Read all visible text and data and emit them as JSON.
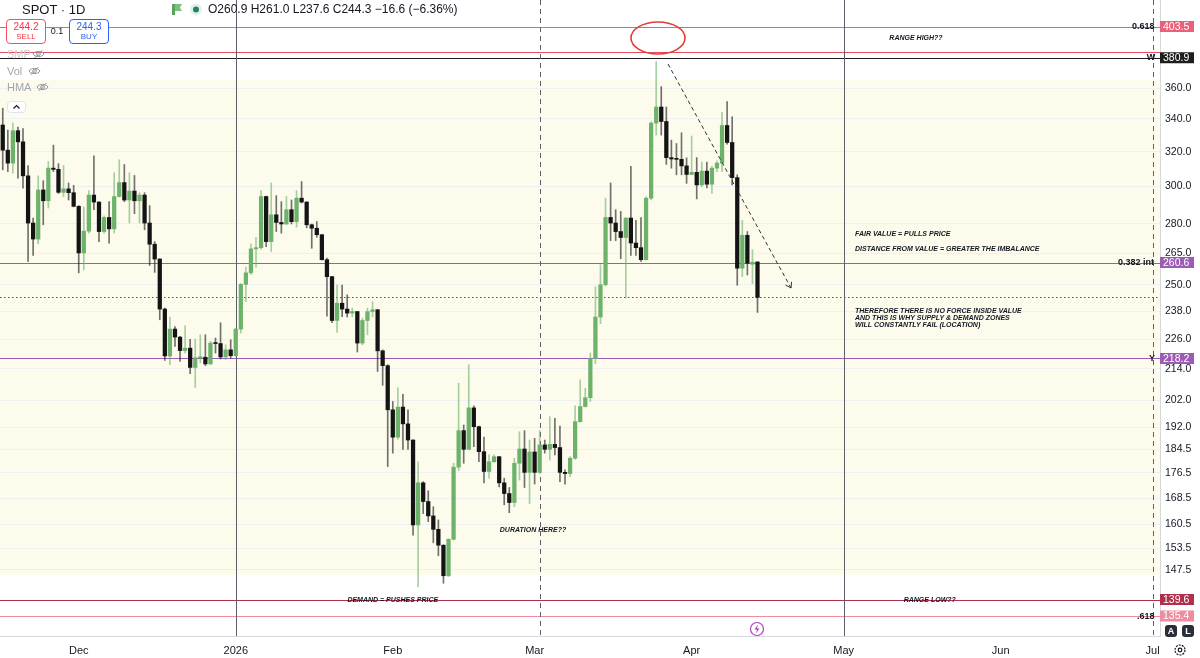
{
  "chart_data": {
    "type": "candlestick",
    "title": "SPOT · 1D",
    "subtitle": "O260.9 H261.0 L237.6 C244.3 −16.6 (−6.36%)",
    "x": [
      "2025-11-16",
      "2025-11-17",
      "2025-11-18",
      "2025-11-19",
      "2025-11-20",
      "2025-11-21",
      "2025-11-22",
      "2025-11-23",
      "2025-11-24",
      "2025-11-25",
      "2025-11-26",
      "2025-11-27",
      "2025-11-28",
      "2025-11-29",
      "2025-11-30",
      "2025-12-01",
      "2025-12-02",
      "2025-12-03",
      "2025-12-04",
      "2025-12-05",
      "2025-12-06",
      "2025-12-07",
      "2025-12-08",
      "2025-12-09",
      "2025-12-10",
      "2025-12-11",
      "2025-12-12",
      "2025-12-13",
      "2025-12-14",
      "2025-12-15",
      "2025-12-16",
      "2025-12-17",
      "2025-12-18",
      "2025-12-19",
      "2025-12-20",
      "2025-12-21",
      "2025-12-22",
      "2025-12-23",
      "2025-12-24",
      "2025-12-25",
      "2025-12-26",
      "2025-12-27",
      "2025-12-28",
      "2025-12-29",
      "2025-12-30",
      "2025-12-31",
      "2026-01-01",
      "2026-01-02",
      "2026-01-03",
      "2026-01-04",
      "2026-01-05",
      "2026-01-06",
      "2026-01-07",
      "2026-01-08",
      "2026-01-09",
      "2026-01-10",
      "2026-01-11",
      "2026-01-12",
      "2026-01-13",
      "2026-01-14",
      "2026-01-15",
      "2026-01-16",
      "2026-01-17",
      "2026-01-18",
      "2026-01-19",
      "2026-01-20",
      "2026-01-21",
      "2026-01-22",
      "2026-01-23",
      "2026-01-24",
      "2026-01-25",
      "2026-01-26",
      "2026-01-27",
      "2026-01-28",
      "2026-01-29",
      "2026-01-30",
      "2026-01-31",
      "2026-02-01",
      "2026-02-02",
      "2026-02-03",
      "2026-02-04",
      "2026-02-05",
      "2026-02-06",
      "2026-02-07",
      "2026-02-08",
      "2026-02-09",
      "2026-02-10",
      "2026-02-11",
      "2026-02-12",
      "2026-02-13",
      "2026-02-14",
      "2026-02-15",
      "2026-02-16",
      "2026-02-17",
      "2026-02-18",
      "2026-02-19",
      "2026-02-20",
      "2026-02-21",
      "2026-02-22",
      "2026-02-23",
      "2026-02-24",
      "2026-02-25",
      "2026-02-26",
      "2026-02-27",
      "2026-02-28",
      "2026-03-01",
      "2026-03-02",
      "2026-03-03",
      "2026-03-04",
      "2026-03-05",
      "2026-03-06",
      "2026-03-07",
      "2026-03-08",
      "2026-03-09",
      "2026-03-10",
      "2026-03-11",
      "2026-03-12",
      "2026-03-13",
      "2026-03-14",
      "2026-03-15",
      "2026-03-16",
      "2026-03-17",
      "2026-03-18",
      "2026-03-19",
      "2026-03-20",
      "2026-03-21",
      "2026-03-22",
      "2026-03-23",
      "2026-03-24",
      "2026-03-25",
      "2026-03-26",
      "2026-03-27",
      "2026-03-28",
      "2026-03-29",
      "2026-03-30",
      "2026-03-31",
      "2026-04-01",
      "2026-04-02",
      "2026-04-03",
      "2026-04-04",
      "2026-04-05",
      "2026-04-06",
      "2026-04-07",
      "2026-04-08",
      "2026-04-09",
      "2026-04-10",
      "2026-04-11",
      "2026-04-12",
      "2026-04-13",
      "2026-04-14"
    ],
    "ohlc": [
      [
        336.2,
        346.8,
        309.4,
        320.9
      ],
      [
        320.9,
        333.1,
        308.4,
        313.3
      ],
      [
        313.3,
        337.6,
        307.5,
        332.7
      ],
      [
        332.7,
        334.9,
        304.7,
        325.9
      ],
      [
        325.9,
        334.0,
        299.1,
        306.0
      ],
      [
        306.0,
        311.9,
        261.2,
        280.4
      ],
      [
        280.4,
        283.0,
        264.1,
        272.2
      ],
      [
        272.2,
        306.0,
        269.8,
        298.1
      ],
      [
        298.1,
        303.3,
        279.5,
        292.2
      ],
      [
        292.2,
        314.2,
        288.3,
        310.4
      ],
      [
        310.4,
        323.9,
        308.4,
        309.7
      ],
      [
        309.7,
        313.0,
        296.2,
        296.8
      ],
      [
        296.8,
        311.9,
        294.5,
        298.7
      ],
      [
        298.7,
        302.0,
        292.6,
        296.6
      ],
      [
        296.6,
        300.7,
        288.9,
        289.2
      ],
      [
        289.2,
        289.6,
        255.7,
        265.3
      ],
      [
        265.3,
        288.9,
        257.1,
        276.2
      ],
      [
        276.2,
        297.7,
        275.2,
        295.3
      ],
      [
        295.3,
        317.5,
        287.4,
        291.5
      ],
      [
        291.5,
        291.7,
        270.9,
        276.0
      ],
      [
        276.0,
        284.2,
        275.2,
        283.3
      ],
      [
        283.3,
        291.7,
        270.1,
        277.4
      ],
      [
        277.4,
        307.8,
        275.2,
        294.5
      ],
      [
        294.5,
        315.2,
        294.2,
        302.2
      ],
      [
        302.2,
        312.5,
        291.7,
        292.6
      ],
      [
        292.6,
        307.8,
        280.4,
        297.5
      ],
      [
        297.5,
        306.2,
        285.3,
        292.2
      ],
      [
        292.2,
        296.6,
        280.4,
        295.3
      ],
      [
        295.3,
        296.6,
        276.9,
        280.4
      ],
      [
        280.4,
        289.6,
        259.2,
        269.6
      ],
      [
        269.6,
        270.9,
        255.9,
        262.3
      ],
      [
        262.3,
        262.5,
        234.4,
        239.1
      ],
      [
        239.1,
        239.5,
        217.4,
        219.2
      ],
      [
        219.2,
        235.6,
        215.7,
        230.4
      ],
      [
        230.4,
        231.5,
        223.1,
        227.0
      ],
      [
        227.0,
        227.3,
        217.0,
        221.4
      ],
      [
        221.4,
        231.8,
        220.4,
        222.4
      ],
      [
        222.4,
        226.1,
        212.1,
        214.6
      ],
      [
        214.6,
        226.1,
        206.8,
        218.5
      ],
      [
        218.5,
        228.0,
        216.4,
        218.7
      ],
      [
        218.7,
        228.0,
        215.3,
        216.0
      ],
      [
        216.0,
        225.2,
        215.7,
        224.5
      ],
      [
        224.5,
        226.6,
        220.4,
        224.3
      ],
      [
        224.3,
        233.1,
        218.0,
        218.8
      ],
      [
        218.8,
        223.8,
        217.7,
        221.7
      ],
      [
        221.7,
        225.9,
        218.4,
        219.3
      ],
      [
        219.3,
        230.6,
        219.0,
        230.4
      ],
      [
        230.4,
        250.7,
        228.7,
        250.3
      ],
      [
        250.3,
        258.4,
        242.4,
        255.7
      ],
      [
        255.7,
        269.8,
        254.9,
        267.3
      ],
      [
        267.3,
        273.1,
        258.4,
        267.9
      ],
      [
        267.9,
        297.7,
        267.1,
        294.5
      ],
      [
        294.5,
        294.7,
        268.4,
        270.9
      ],
      [
        270.9,
        302.0,
        266.0,
        284.7
      ],
      [
        284.7,
        295.0,
        276.0,
        280.7
      ],
      [
        280.7,
        291.7,
        275.2,
        279.9
      ],
      [
        279.9,
        294.5,
        279.5,
        287.4
      ],
      [
        287.4,
        292.6,
        279.9,
        281.1
      ],
      [
        281.1,
        297.7,
        278.3,
        293.6
      ],
      [
        293.6,
        302.8,
        291.0,
        291.5
      ],
      [
        291.5,
        291.7,
        277.9,
        279.5
      ],
      [
        279.5,
        279.9,
        267.6,
        277.7
      ],
      [
        277.7,
        281.2,
        273.1,
        274.4
      ],
      [
        274.4,
        274.5,
        261.7,
        262.0
      ],
      [
        262.0,
        262.8,
        236.0,
        253.9
      ],
      [
        253.9,
        254.0,
        233.1,
        234.1
      ],
      [
        234.1,
        249.9,
        229.0,
        241.7
      ],
      [
        241.7,
        249.9,
        235.7,
        239.1
      ],
      [
        239.1,
        245.5,
        235.6,
        237.3
      ],
      [
        237.3,
        239.5,
        235.7,
        238.0
      ],
      [
        238.0,
        238.1,
        220.8,
        224.5
      ],
      [
        224.5,
        235.1,
        223.8,
        234.1
      ],
      [
        234.1,
        239.5,
        228.0,
        238.0
      ],
      [
        238.0,
        242.4,
        235.7,
        238.8
      ],
      [
        238.8,
        238.9,
        213.0,
        221.3
      ],
      [
        221.3,
        221.7,
        207.6,
        215.3
      ],
      [
        215.3,
        215.7,
        178.6,
        198.4
      ],
      [
        198.4,
        201.5,
        183.1,
        188.6
      ],
      [
        188.6,
        206.6,
        187.9,
        199.4
      ],
      [
        199.4,
        204.2,
        184.4,
        193.3
      ],
      [
        193.3,
        198.4,
        184.4,
        187.6
      ],
      [
        187.6,
        187.7,
        157.3,
        160.3
      ],
      [
        160.3,
        180.2,
        142.9,
        173.3
      ],
      [
        173.3,
        173.7,
        163.7,
        167.4
      ],
      [
        167.4,
        170.8,
        161.3,
        163.0
      ],
      [
        163.0,
        165.8,
        155.1,
        159.0
      ],
      [
        159.0,
        161.8,
        151.4,
        154.4
      ],
      [
        154.4,
        154.5,
        143.9,
        145.9
      ],
      [
        145.9,
        156.3,
        145.7,
        156.1
      ],
      [
        156.1,
        179.7,
        155.9,
        178.4
      ],
      [
        178.4,
        208.4,
        177.3,
        190.9
      ],
      [
        190.9,
        192.9,
        179.7,
        184.4
      ],
      [
        184.4,
        215.7,
        184.2,
        199.1
      ],
      [
        199.1,
        199.9,
        185.3,
        192.3
      ],
      [
        192.3,
        192.5,
        180.2,
        183.6
      ],
      [
        183.6,
        188.6,
        173.3,
        177.0
      ],
      [
        177.0,
        182.5,
        174.8,
        180.2
      ],
      [
        180.2,
        182.5,
        180.1,
        181.9
      ],
      [
        181.9,
        182.0,
        172.0,
        173.3
      ],
      [
        173.3,
        174.8,
        166.4,
        169.9
      ],
      [
        169.9,
        171.8,
        164.0,
        167.1
      ],
      [
        167.1,
        181.4,
        165.8,
        179.7
      ],
      [
        179.7,
        190.5,
        174.2,
        184.5
      ],
      [
        184.5,
        190.9,
        171.8,
        176.7
      ],
      [
        176.7,
        187.6,
        166.7,
        183.5
      ],
      [
        183.5,
        188.2,
        172.9,
        176.7
      ],
      [
        176.7,
        190.9,
        176.3,
        185.9
      ],
      [
        185.9,
        187.6,
        183.1,
        184.4
      ],
      [
        184.4,
        195.9,
        180.8,
        186.1
      ],
      [
        186.1,
        195.3,
        182.5,
        185.0
      ],
      [
        185.0,
        192.5,
        173.7,
        176.7
      ],
      [
        176.7,
        177.5,
        172.9,
        176.3
      ],
      [
        176.3,
        181.9,
        175.3,
        181.4
      ],
      [
        181.4,
        199.9,
        181.0,
        194.1
      ],
      [
        194.1,
        209.7,
        193.9,
        199.6
      ],
      [
        199.6,
        206.5,
        199.4,
        202.9
      ],
      [
        202.9,
        220.4,
        201.5,
        218.1
      ],
      [
        218.1,
        249.2,
        216.1,
        235.6
      ],
      [
        235.6,
        259.6,
        232.7,
        250.1
      ],
      [
        250.1,
        293.6,
        249.5,
        283.3
      ],
      [
        283.3,
        302.0,
        271.4,
        280.4
      ],
      [
        280.4,
        287.4,
        271.4,
        276.0
      ],
      [
        276.0,
        286.5,
        262.5,
        273.0
      ],
      [
        273.0,
        283.2,
        244.0,
        283.0
      ],
      [
        283.0,
        311.4,
        264.1,
        270.2
      ],
      [
        270.2,
        281.8,
        264.1,
        267.9
      ],
      [
        267.9,
        283.3,
        261.2,
        262.0
      ],
      [
        262.0,
        294.5,
        261.7,
        293.6
      ],
      [
        293.6,
        338.4,
        292.6,
        337.4
      ],
      [
        337.4,
        378.2,
        330.0,
        347.6
      ],
      [
        347.6,
        361.0,
        330.0,
        338.4
      ],
      [
        338.4,
        347.6,
        312.6,
        316.5
      ],
      [
        316.5,
        326.9,
        310.4,
        315.7
      ],
      [
        315.7,
        324.9,
        306.6,
        315.5
      ],
      [
        315.5,
        331.4,
        306.6,
        311.7
      ],
      [
        311.7,
        316.4,
        301.8,
        306.8
      ],
      [
        306.8,
        329.4,
        306.6,
        308.0
      ],
      [
        308.0,
        316.5,
        293.2,
        300.9
      ],
      [
        300.9,
        313.9,
        299.9,
        308.7
      ],
      [
        308.7,
        313.9,
        299.3,
        301.3
      ],
      [
        301.3,
        311.6,
        296.2,
        310.4
      ],
      [
        310.4,
        314.6,
        308.4,
        313.3
      ],
      [
        313.3,
        344.2,
        308.4,
        335.9
      ],
      [
        335.9,
        351.1,
        324.5,
        325.5
      ],
      [
        325.5,
        341.4,
        300.9,
        305.0
      ],
      [
        305.0,
        306.6,
        249.9,
        257.9
      ],
      [
        257.9,
        281.8,
        253.9,
        274.1
      ],
      [
        274.1,
        276.0,
        254.7,
        260.3
      ],
      [
        259.8,
        266.9,
        250.6,
        260.8
      ],
      [
        260.9,
        261.0,
        237.6,
        244.3
      ]
    ],
    "colors": [
      "#141414",
      "#141414",
      "#6db26a",
      "#141414",
      "#141414",
      "#141414",
      "#141414",
      "#6db26a",
      "#141414",
      "#6db26a",
      "#141414",
      "#141414",
      "#6db26a",
      "#141414",
      "#141414",
      "#141414",
      "#6db26a",
      "#6db26a",
      "#141414",
      "#141414",
      "#6db26a",
      "#141414",
      "#6db26a",
      "#6db26a",
      "#141414",
      "#6db26a",
      "#141414",
      "#6db26a",
      "#141414",
      "#141414",
      "#141414",
      "#141414",
      "#141414",
      "#6db26a",
      "#141414",
      "#141414",
      "#6db26a",
      "#141414",
      "#6db26a",
      "#6db26a",
      "#141414",
      "#6db26a",
      "#141414",
      "#141414",
      "#6db26a",
      "#141414",
      "#6db26a",
      "#6db26a",
      "#6db26a",
      "#6db26a",
      "#6db26a",
      "#6db26a",
      "#141414",
      "#6db26a",
      "#141414",
      "#141414",
      "#6db26a",
      "#141414",
      "#6db26a",
      "#141414",
      "#141414",
      "#141414",
      "#141414",
      "#141414",
      "#141414",
      "#141414",
      "#6db26a",
      "#141414",
      "#141414",
      "#6db26a",
      "#141414",
      "#6db26a",
      "#6db26a",
      "#6db26a",
      "#141414",
      "#141414",
      "#141414",
      "#141414",
      "#6db26a",
      "#141414",
      "#141414",
      "#141414",
      "#6db26a",
      "#141414",
      "#141414",
      "#141414",
      "#141414",
      "#141414",
      "#6db26a",
      "#6db26a",
      "#6db26a",
      "#141414",
      "#6db26a",
      "#141414",
      "#141414",
      "#141414",
      "#6db26a",
      "#6db26a",
      "#141414",
      "#141414",
      "#141414",
      "#6db26a",
      "#6db26a",
      "#141414",
      "#6db26a",
      "#141414",
      "#6db26a",
      "#141414",
      "#6db26a",
      "#141414",
      "#141414",
      "#141414",
      "#6db26a",
      "#6db26a",
      "#6db26a",
      "#6db26a",
      "#6db26a",
      "#6db26a",
      "#6db26a",
      "#6db26a",
      "#141414",
      "#141414",
      "#141414",
      "#6db26a",
      "#141414",
      "#141414",
      "#141414",
      "#6db26a",
      "#6db26a",
      "#6db26a",
      "#141414",
      "#141414",
      "#141414",
      "#141414",
      "#141414",
      "#141414",
      "#6db26a",
      "#141414",
      "#6db26a",
      "#141414",
      "#6db26a",
      "#6db26a",
      "#6db26a",
      "#141414",
      "#141414",
      "#141414",
      "#6db26a",
      "#141414",
      "#6db26a",
      "#141414"
    ],
    "xlim": [
      "2025-11-15T11:00",
      "2026-07-02T11:00"
    ],
    "xticks": [
      {
        "value": "2025-12-01",
        "label": "Dec"
      },
      {
        "value": "2026-01-01",
        "label": "2026"
      },
      {
        "value": "2026-02-01",
        "label": "Feb"
      },
      {
        "value": "2026-03-01",
        "label": "Mar"
      },
      {
        "value": "2026-04-01",
        "label": "Apr"
      },
      {
        "value": "2026-05-01",
        "label": "May"
      },
      {
        "value": "2026-06-01",
        "label": "Jun"
      },
      {
        "value": "2026-07-01",
        "label": "Jul"
      }
    ],
    "ylim": [
      130.5,
      423.8
    ],
    "yticks": [
      {
        "value": 360,
        "label": "360.0"
      },
      {
        "value": 340,
        "label": "340.0"
      },
      {
        "value": 320,
        "label": "320.0"
      },
      {
        "value": 300,
        "label": "300.0"
      },
      {
        "value": 280,
        "label": "280.0"
      },
      {
        "value": 265,
        "label": "265.0"
      },
      {
        "value": 250,
        "label": "250.0"
      },
      {
        "value": 238,
        "label": "238.0"
      },
      {
        "value": 226,
        "label": "226.0"
      },
      {
        "value": 214,
        "label": "214.0"
      },
      {
        "value": 202,
        "label": "202.0"
      },
      {
        "value": 192,
        "label": "192.0"
      },
      184.5,
      176.5,
      168.5,
      160.5,
      153.5,
      147.5
    ],
    "log": "y",
    "grid": "y",
    "bands": [
      {
        "axis": "y",
        "from": 146.1,
        "to": 365.4,
        "color": "#fcfbec"
      }
    ],
    "ref_lines": [
      {
        "axis": "y",
        "value": 403.5,
        "label": "403.5",
        "color": "#e8607a"
      },
      {
        "axis": "y",
        "value": 385,
        "color": "#e54d5f"
      },
      {
        "axis": "y",
        "value": 380.9,
        "label": "380.9",
        "color": "#1e1e1e"
      },
      {
        "axis": "y",
        "value": 260.6,
        "label": "260.6",
        "color": "#9c5bb5"
      },
      {
        "axis": "y",
        "value": 244.3,
        "color": "#555555",
        "line_style": "dotted"
      },
      {
        "axis": "y",
        "value": 218.2,
        "label": "218.2",
        "color": "#9c5bb5"
      },
      {
        "axis": "y",
        "value": 139.6,
        "label": "139.6",
        "color": "#b0304a"
      },
      {
        "axis": "y",
        "value": 135.4,
        "label": "135.4",
        "color": "#ee8ca0"
      },
      {
        "axis": "x",
        "value": "2026-01-01",
        "color": "#5d606b"
      },
      {
        "axis": "x",
        "value": "2026-03-02",
        "color": "#5d606b",
        "line_style": "dashed"
      },
      {
        "axis": "x",
        "value": "2026-05-01",
        "color": "#5d606b"
      },
      {
        "axis": "x",
        "value": "2026-07-01",
        "color": "#5d606b",
        "line_style": "dashed"
      }
    ],
    "annotations": [
      {
        "text": "0.618",
        "x": "2026-06-29T04:00",
        "y": 403.5
      },
      {
        "text": "W",
        "x": "2026-06-30T16:00",
        "y": 380.9
      },
      {
        "text": "0.382 int",
        "x": "2026-06-27T17:00",
        "y": 260.6
      },
      {
        "text": "Y",
        "x": "2026-06-30T21:00",
        "y": 218.2
      },
      {
        "text": ".618",
        "x": "2026-06-29T16:00",
        "y": 135.4
      },
      {
        "text": "DEMAND = PUSHES PRICE",
        "x": "2026-02-01",
        "y": 139.6
      },
      {
        "text": "RANGE LOW??",
        "x": "2026-05-18",
        "y": 139.6
      },
      "RANGE HIGH??",
      "DURATION HERE??",
      "FAIR VALUE = PULLS PRICE",
      "DISTANCE FROM VALUE = GREATER THE IMBALANCE",
      "THEREFORE THERE IS NO FORCE INSIDE VALUE\nAND THIS IS WHY SUPPLY & DEMAND ZONES\nWILL CONSTANTLY FAIL (LOCATION)",
      "244.2",
      "SELL",
      "0.1",
      "244.3",
      "BUY",
      "SMP",
      "Vol",
      "HMA",
      "A",
      "L"
    ]
  }
}
